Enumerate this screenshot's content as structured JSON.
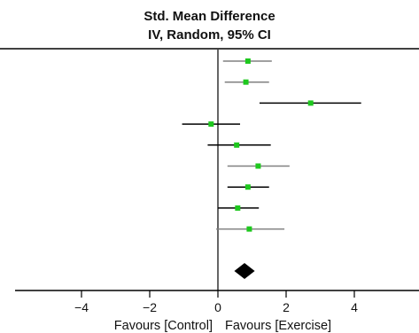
{
  "chart_data": {
    "type": "forest",
    "title": "Std. Mean Difference",
    "subtitle": "IV, Random, 95% CI",
    "xlim": [
      -6,
      6
    ],
    "x_ticks": [
      -4,
      -2,
      0,
      2,
      4
    ],
    "x_tick_labels": [
      "−4",
      "−2",
      "0",
      "2",
      "4"
    ],
    "favours_left": "Favours [Control]",
    "favours_right": "Favours [Exercise]",
    "studies": [
      {
        "estimate": 0.88,
        "lower": 0.15,
        "upper": 1.58,
        "ci_color": "#808080"
      },
      {
        "estimate": 0.82,
        "lower": 0.2,
        "upper": 1.5,
        "ci_color": "#808080"
      },
      {
        "estimate": 2.72,
        "lower": 1.22,
        "upper": 4.2,
        "ci_color": "#000000"
      },
      {
        "estimate": -0.2,
        "lower": -1.05,
        "upper": 0.65,
        "ci_color": "#000000"
      },
      {
        "estimate": 0.55,
        "lower": -0.3,
        "upper": 1.55,
        "ci_color": "#000000"
      },
      {
        "estimate": 1.18,
        "lower": 0.28,
        "upper": 2.1,
        "ci_color": "#808080"
      },
      {
        "estimate": 0.88,
        "lower": 0.28,
        "upper": 1.5,
        "ci_color": "#000000"
      },
      {
        "estimate": 0.58,
        "lower": 0.0,
        "upper": 1.2,
        "ci_color": "#000000"
      },
      {
        "estimate": 0.92,
        "lower": -0.05,
        "upper": 1.95,
        "ci_color": "#808080"
      }
    ],
    "pooled": {
      "estimate": 0.78,
      "lower": 0.48,
      "upper": 1.08
    },
    "colors": {
      "marker": "#1ec81e",
      "pooled": "#000000",
      "axis": "#000000"
    },
    "grid": false
  }
}
